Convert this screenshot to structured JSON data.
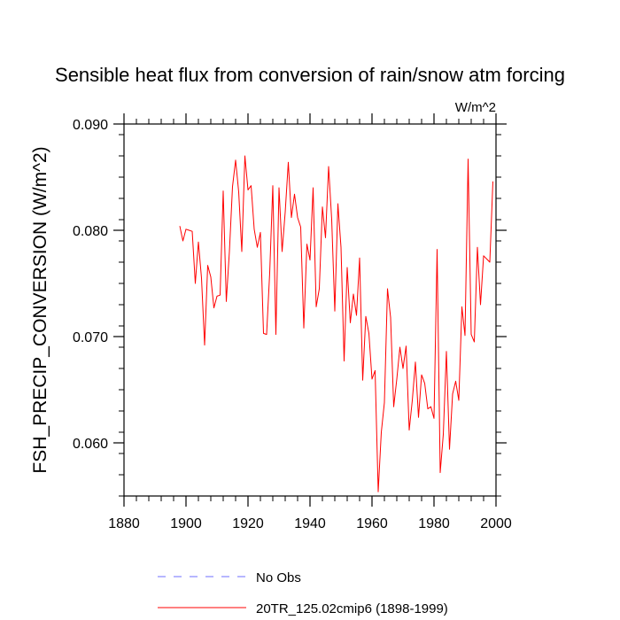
{
  "chart_data": {
    "type": "line",
    "title": "Sensible heat flux from conversion of rain/snow atm forcing",
    "units_label": "W/m^2",
    "ylabel": "FSH_PRECIP_CONVERSION  (W/m^2)",
    "xlabel": "",
    "xlim": [
      1880,
      2000
    ],
    "ylim": [
      0.055,
      0.09
    ],
    "x_ticks": [
      1880,
      1900,
      1920,
      1940,
      1960,
      1980,
      2000
    ],
    "x_tick_labels": [
      "1880",
      "1900",
      "1920",
      "1940",
      "1960",
      "1980",
      "2000"
    ],
    "y_ticks": [
      0.06,
      0.07,
      0.08,
      0.09
    ],
    "y_tick_labels": [
      "0.060",
      "0.070",
      "0.080",
      "0.090"
    ],
    "colors": {
      "model": "#ff0000",
      "obs": "#6f6fff"
    },
    "legend_position": "bottom",
    "legend": [
      {
        "label": "No Obs",
        "style": "dashed"
      },
      {
        "label": "20TR_125.02cmip6 (1898-1999)",
        "style": "solid"
      }
    ],
    "series": [
      {
        "name": "20TR_125.02cmip6 (1898-1999)",
        "x": [
          1898,
          1899,
          1900,
          1901,
          1902,
          1903,
          1904,
          1905,
          1906,
          1907,
          1908,
          1909,
          1910,
          1911,
          1912,
          1913,
          1914,
          1915,
          1916,
          1917,
          1918,
          1919,
          1920,
          1921,
          1922,
          1923,
          1924,
          1925,
          1926,
          1927,
          1928,
          1929,
          1930,
          1931,
          1932,
          1933,
          1934,
          1935,
          1936,
          1937,
          1938,
          1939,
          1940,
          1941,
          1942,
          1943,
          1944,
          1945,
          1946,
          1947,
          1948,
          1949,
          1950,
          1951,
          1952,
          1953,
          1954,
          1955,
          1956,
          1957,
          1958,
          1959,
          1960,
          1961,
          1962,
          1963,
          1964,
          1965,
          1966,
          1967,
          1968,
          1969,
          1970,
          1971,
          1972,
          1973,
          1974,
          1975,
          1976,
          1977,
          1978,
          1979,
          1980,
          1981,
          1982,
          1983,
          1984,
          1985,
          1986,
          1987,
          1988,
          1989,
          1990,
          1991,
          1992,
          1993,
          1994,
          1995,
          1996,
          1997,
          1998,
          1999
        ],
        "values": [
          0.0804,
          0.079,
          0.0801,
          0.08,
          0.0799,
          0.075,
          0.0789,
          0.0755,
          0.0692,
          0.0767,
          0.0756,
          0.0727,
          0.0738,
          0.0739,
          0.0837,
          0.0733,
          0.078,
          0.0841,
          0.0866,
          0.0836,
          0.078,
          0.087,
          0.0838,
          0.0842,
          0.0801,
          0.0784,
          0.0798,
          0.0703,
          0.0702,
          0.076,
          0.0842,
          0.0702,
          0.084,
          0.078,
          0.0817,
          0.0864,
          0.0812,
          0.0834,
          0.0812,
          0.0803,
          0.0708,
          0.0787,
          0.0772,
          0.084,
          0.0728,
          0.0745,
          0.0822,
          0.0793,
          0.086,
          0.081,
          0.0724,
          0.0825,
          0.0784,
          0.0677,
          0.0765,
          0.0713,
          0.074,
          0.072,
          0.0774,
          0.0659,
          0.0719,
          0.0703,
          0.066,
          0.0668,
          0.0554,
          0.061,
          0.0638,
          0.0745,
          0.0718,
          0.0634,
          0.066,
          0.069,
          0.067,
          0.0691,
          0.0612,
          0.064,
          0.0676,
          0.0624,
          0.0664,
          0.0656,
          0.0632,
          0.0634,
          0.0623,
          0.0782,
          0.0572,
          0.0608,
          0.0686,
          0.0594,
          0.0646,
          0.0658,
          0.064,
          0.0728,
          0.0701,
          0.0867,
          0.0702,
          0.0695,
          0.0784,
          0.073,
          0.0776,
          0.0773,
          0.077,
          0.0846
        ]
      }
    ]
  }
}
